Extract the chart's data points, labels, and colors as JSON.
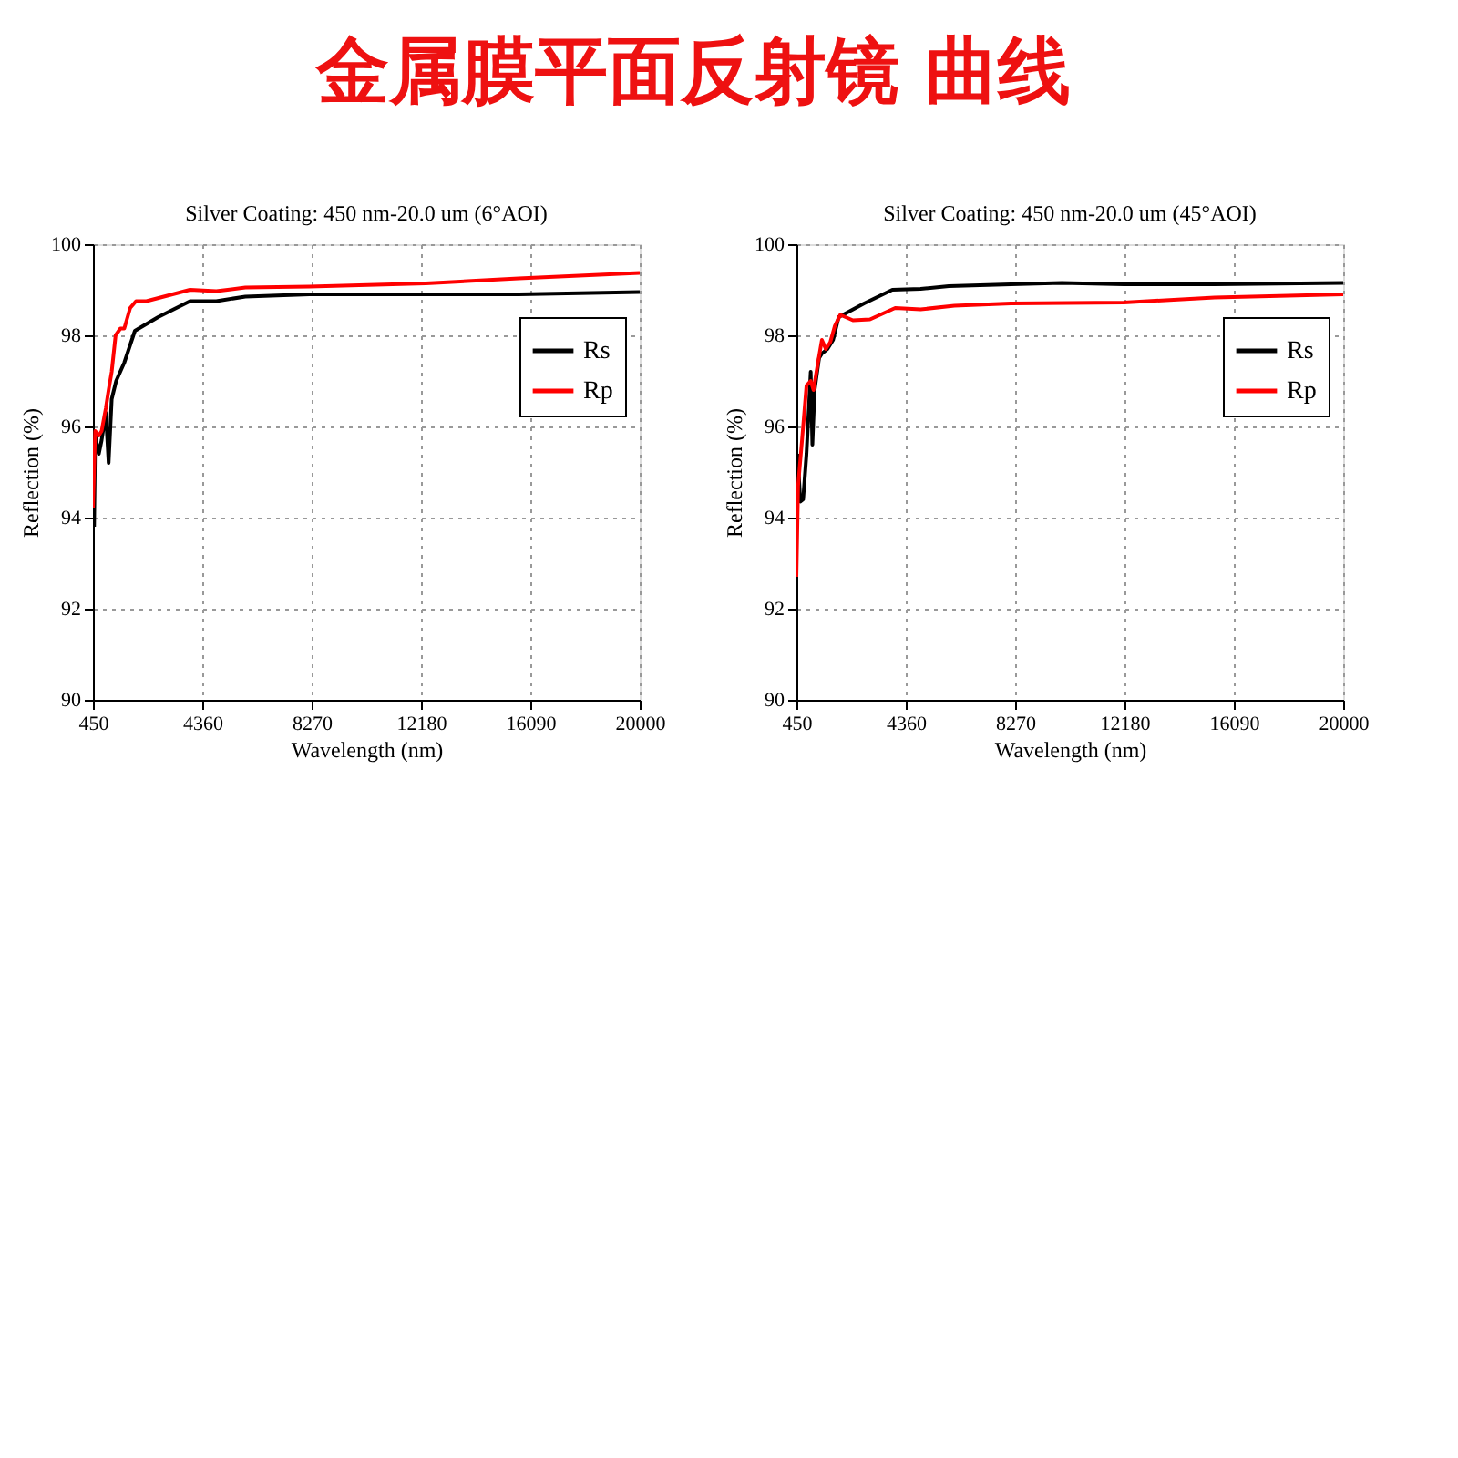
{
  "chart_data": [
    {
      "type": "line",
      "title": "Silver Coating: 450 nm-20.0 um (6°AOI)",
      "annotations": [
        "金属膜平面反射镜 曲线"
      ],
      "xlabel": "Wavelength (nm)",
      "ylabel": "Reflection (%)",
      "xlim": [
        450,
        20000
      ],
      "xticks": [
        450,
        4360,
        8270,
        12180,
        16090,
        20000
      ],
      "ylim": [
        90,
        100
      ],
      "yticks": [
        90,
        92,
        94,
        96,
        98,
        100
      ],
      "grid": true,
      "legend": "top right",
      "line_style": "solid",
      "series": [
        {
          "name": "Rs",
          "color": "#000000",
          "x": [
            490,
            530,
            660,
            760,
            910,
            1010,
            1120,
            1280,
            1570,
            1950,
            2780,
            3920,
            4860,
            5900,
            8190,
            10060,
            12350,
            15670,
            20000
          ],
          "values": [
            93.8,
            95.8,
            95.4,
            95.7,
            96.3,
            95.2,
            96.6,
            97.0,
            97.4,
            98.1,
            98.4,
            98.75,
            98.75,
            98.85,
            98.9,
            98.9,
            98.9,
            98.9,
            98.95
          ]
        },
        {
          "name": "Rp",
          "color": "#ff0000",
          "x": [
            450,
            530,
            660,
            760,
            910,
            1010,
            1120,
            1260,
            1430,
            1570,
            1780,
            1990,
            2360,
            3920,
            4860,
            5900,
            8190,
            12350,
            15670,
            20000
          ],
          "values": [
            94.2,
            95.9,
            95.8,
            95.9,
            96.4,
            96.8,
            97.2,
            98.0,
            98.15,
            98.15,
            98.6,
            98.75,
            98.75,
            99.0,
            98.97,
            99.05,
            99.07,
            99.14,
            99.25,
            99.37
          ]
        }
      ]
    },
    {
      "type": "line",
      "title": "Silver Coating: 450 nm-20.0 um (45°AOI)",
      "xlabel": "Wavelength (nm)",
      "ylabel": "Reflection (%)",
      "xlim": [
        450,
        20000
      ],
      "xticks": [
        450,
        4360,
        8270,
        12180,
        16090,
        20000
      ],
      "ylim": [
        90,
        100
      ],
      "yticks": [
        90,
        92,
        94,
        96,
        98,
        100
      ],
      "grid": true,
      "legend": "top right",
      "line_style": "solid",
      "series": [
        {
          "name": "Rs",
          "color": "#000000",
          "x": [
            490,
            590,
            690,
            810,
            960,
            1020,
            1100,
            1260,
            1360,
            1560,
            1760,
            1960,
            2870,
            3880,
            4890,
            5900,
            8120,
            9940,
            12160,
            15400,
            20000
          ],
          "values": [
            95.4,
            94.35,
            94.4,
            95.4,
            97.2,
            95.6,
            96.8,
            97.5,
            97.6,
            97.7,
            97.9,
            98.4,
            98.7,
            99.0,
            99.02,
            99.08,
            99.12,
            99.15,
            99.12,
            99.12,
            99.15
          ]
        },
        {
          "name": "Rp",
          "color": "#ff0000",
          "x": [
            450,
            510,
            650,
            810,
            960,
            1060,
            1220,
            1360,
            1500,
            1660,
            1820,
            2020,
            2470,
            3080,
            3980,
            4890,
            6100,
            8120,
            12160,
            15400,
            20000
          ],
          "values": [
            92.7,
            94.7,
            95.7,
            96.9,
            97.0,
            96.8,
            97.4,
            97.9,
            97.7,
            97.85,
            98.2,
            98.45,
            98.33,
            98.35,
            98.6,
            98.57,
            98.65,
            98.7,
            98.72,
            98.83,
            98.9
          ]
        }
      ]
    }
  ]
}
